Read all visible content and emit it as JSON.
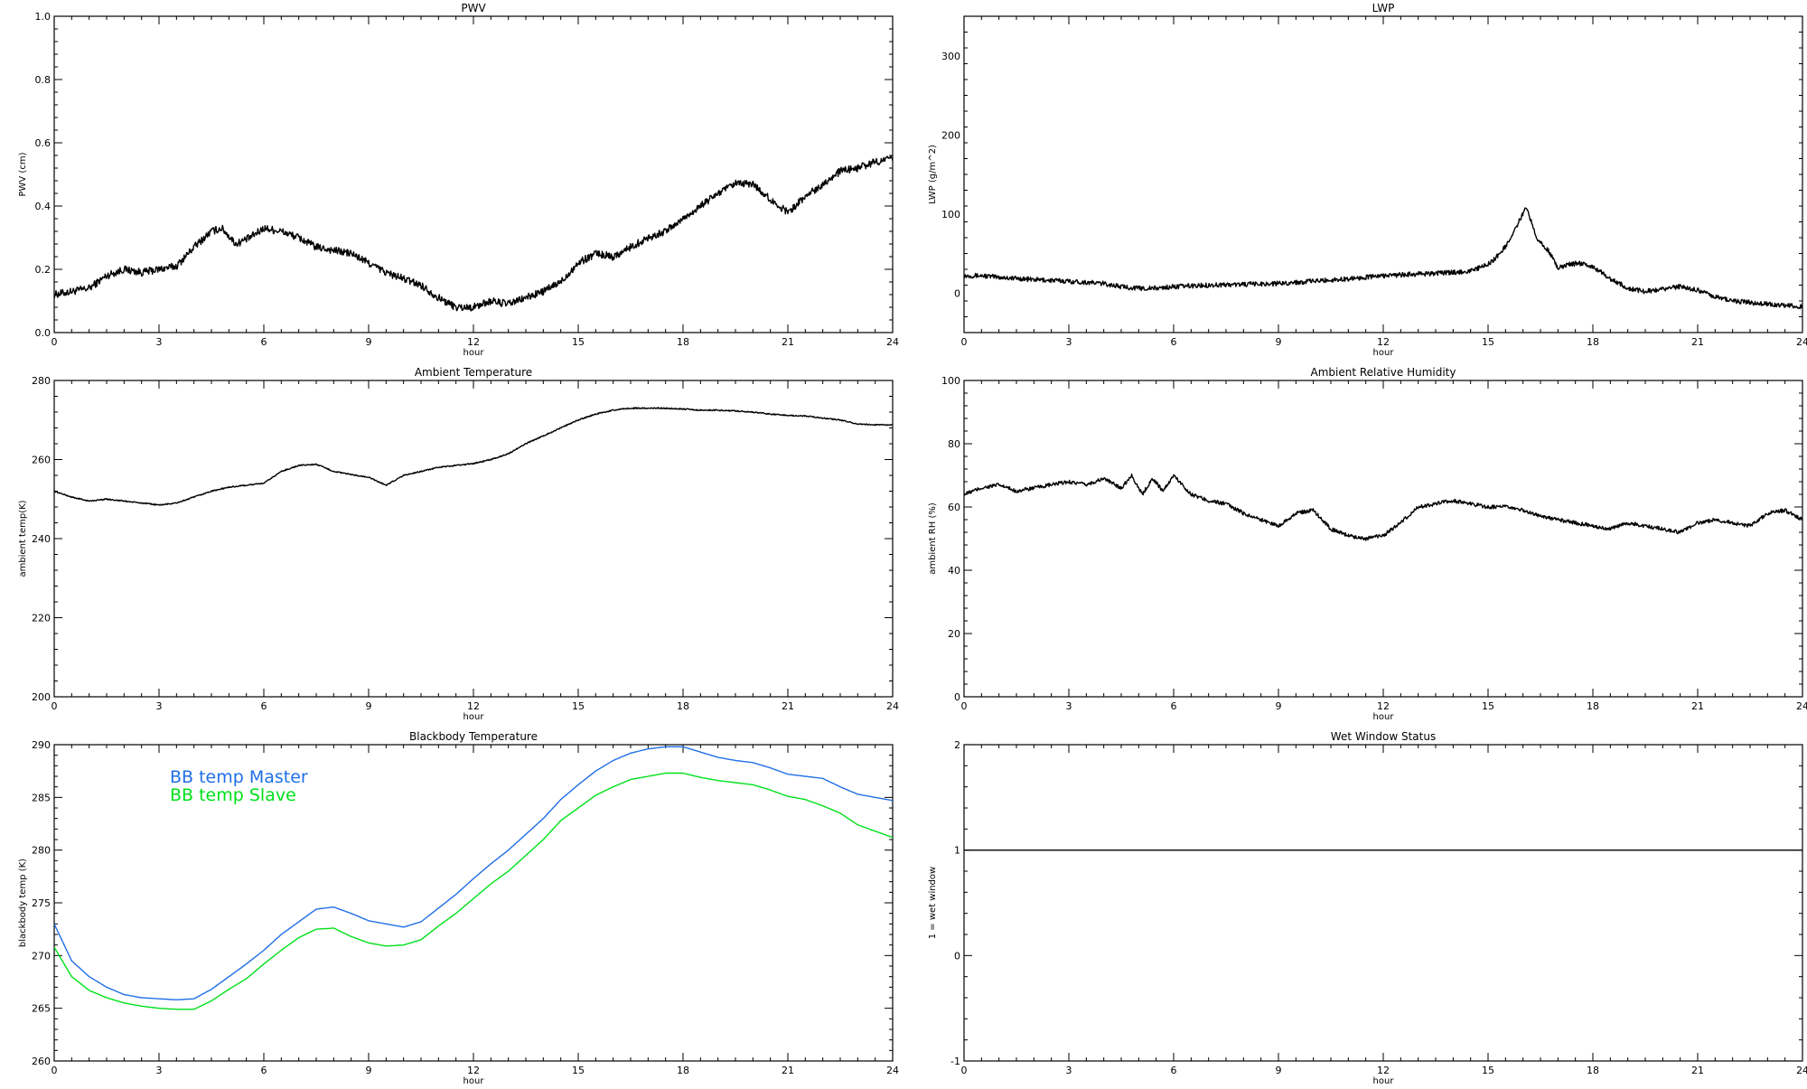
{
  "chart_data": [
    {
      "id": "pwv",
      "type": "line",
      "title": "PWV",
      "xlabel": "hour",
      "ylabel": "PWV (cm)",
      "xlim": [
        0,
        24
      ],
      "ylim": [
        0,
        1.0
      ],
      "xticks": [
        0,
        3,
        6,
        9,
        12,
        15,
        18,
        21,
        24
      ],
      "yticks": [
        0.0,
        0.2,
        0.4,
        0.6,
        0.8,
        1.0
      ],
      "ytick_labels": [
        "0.0",
        "0.2",
        "0.4",
        "0.6",
        "0.8",
        "1.0"
      ],
      "noise": 0.012,
      "series": [
        {
          "color": "#000000",
          "x": [
            0,
            0.5,
            1,
            1.5,
            2,
            2.5,
            3,
            3.5,
            4,
            4.5,
            4.8,
            5.2,
            5.6,
            6,
            6.5,
            7,
            7.5,
            8,
            8.5,
            9,
            9.5,
            10,
            10.5,
            11,
            11.5,
            12,
            12.5,
            13,
            13.5,
            14,
            14.5,
            15,
            15.5,
            16,
            16.5,
            17,
            17.5,
            18,
            18.5,
            19,
            19.5,
            20,
            20.5,
            21,
            21.5,
            22,
            22.5,
            23,
            23.5,
            24
          ],
          "values": [
            0.12,
            0.13,
            0.14,
            0.18,
            0.2,
            0.19,
            0.2,
            0.21,
            0.27,
            0.32,
            0.33,
            0.28,
            0.3,
            0.33,
            0.32,
            0.3,
            0.27,
            0.26,
            0.25,
            0.22,
            0.19,
            0.17,
            0.15,
            0.11,
            0.08,
            0.08,
            0.1,
            0.09,
            0.11,
            0.13,
            0.16,
            0.22,
            0.25,
            0.24,
            0.27,
            0.3,
            0.32,
            0.36,
            0.4,
            0.44,
            0.47,
            0.47,
            0.42,
            0.38,
            0.43,
            0.47,
            0.51,
            0.52,
            0.54,
            0.55
          ]
        }
      ]
    },
    {
      "id": "lwp",
      "type": "line",
      "title": "LWP",
      "xlabel": "hour",
      "ylabel": "LWP (g/m^2)",
      "xlim": [
        0,
        24
      ],
      "ylim": [
        -50,
        350
      ],
      "xticks": [
        0,
        3,
        6,
        9,
        12,
        15,
        18,
        21,
        24
      ],
      "yticks": [
        0,
        100,
        200,
        300
      ],
      "ytick_labels": [
        "0",
        "100",
        "200",
        "300"
      ],
      "noise": 3,
      "series": [
        {
          "color": "#000000",
          "x": [
            0,
            0.5,
            1,
            2,
            3,
            4,
            4.5,
            5,
            5.5,
            6,
            7,
            8,
            9,
            10,
            11,
            12,
            13,
            14,
            14.5,
            15,
            15.3,
            15.6,
            15.9,
            16.1,
            16.4,
            16.7,
            17,
            17.3,
            17.6,
            18,
            18.5,
            19,
            19.5,
            20,
            20.5,
            21,
            21.5,
            22,
            22.5,
            23,
            23.5,
            24
          ],
          "values": [
            22,
            22,
            20,
            17,
            15,
            12,
            8,
            6,
            6,
            8,
            10,
            11,
            12,
            15,
            18,
            22,
            24,
            26,
            28,
            36,
            48,
            65,
            92,
            108,
            70,
            55,
            32,
            36,
            38,
            33,
            18,
            6,
            2,
            5,
            8,
            4,
            -5,
            -10,
            -12,
            -14,
            -16,
            -17
          ]
        }
      ]
    },
    {
      "id": "ambient_temp",
      "type": "line",
      "title": "Ambient Temperature",
      "xlabel": "hour",
      "ylabel": "ambient temp(K)",
      "xlim": [
        0,
        24
      ],
      "ylim": [
        200,
        280
      ],
      "xticks": [
        0,
        3,
        6,
        9,
        12,
        15,
        18,
        21,
        24
      ],
      "yticks": [
        200,
        220,
        240,
        260,
        280
      ],
      "ytick_labels": [
        "200",
        "220",
        "240",
        "260",
        "280"
      ],
      "noise": 0.15,
      "series": [
        {
          "color": "#000000",
          "x": [
            0,
            0.5,
            1,
            1.5,
            2,
            2.5,
            3,
            3.5,
            4,
            4.5,
            5,
            5.5,
            6,
            6.5,
            7,
            7.5,
            8,
            8.5,
            9,
            9.5,
            10,
            10.5,
            11,
            11.5,
            12,
            12.5,
            13,
            13.5,
            14,
            14.5,
            15,
            15.5,
            16,
            16.5,
            17,
            17.5,
            18,
            18.5,
            19,
            19.5,
            20,
            20.5,
            21,
            21.5,
            22,
            22.5,
            23,
            23.5,
            24
          ],
          "values": [
            252,
            250.5,
            249.5,
            250,
            249.5,
            249,
            248.5,
            249,
            250.5,
            252,
            253,
            253.5,
            254,
            257,
            258.5,
            258.8,
            257,
            256.2,
            255.5,
            253.5,
            256,
            257,
            258,
            258.5,
            259,
            260,
            261.5,
            264,
            266,
            268,
            270,
            271.5,
            272.5,
            273,
            273,
            273,
            272.8,
            272.5,
            272.5,
            272.3,
            272,
            271.5,
            271.2,
            271,
            270.5,
            270,
            269,
            268.8,
            268.7
          ]
        }
      ]
    },
    {
      "id": "ambient_rh",
      "type": "line",
      "title": "Ambient Relative Humidity",
      "xlabel": "hour",
      "ylabel": "ambient RH (%)",
      "xlim": [
        0,
        24
      ],
      "ylim": [
        0,
        100
      ],
      "xticks": [
        0,
        3,
        6,
        9,
        12,
        15,
        18,
        21,
        24
      ],
      "yticks": [
        0,
        20,
        40,
        60,
        80,
        100
      ],
      "ytick_labels": [
        "0",
        "20",
        "40",
        "60",
        "80",
        "100"
      ],
      "noise": 0.6,
      "series": [
        {
          "color": "#000000",
          "x": [
            0,
            0.5,
            1,
            1.5,
            2,
            2.5,
            3,
            3.5,
            4,
            4.5,
            4.8,
            5.1,
            5.4,
            5.7,
            6,
            6.5,
            7,
            7.5,
            8,
            8.5,
            9,
            9.5,
            10,
            10.5,
            11,
            11.5,
            12,
            12.5,
            13,
            13.5,
            14,
            14.5,
            15,
            15.5,
            16,
            16.5,
            17,
            17.5,
            18,
            18.5,
            19,
            19.5,
            20,
            20.5,
            21,
            21.5,
            22,
            22.5,
            23,
            23.5,
            24
          ],
          "values": [
            64,
            66,
            67,
            65,
            66,
            67,
            68,
            67,
            69,
            66,
            70,
            64,
            69,
            65,
            70,
            64,
            62,
            61,
            58,
            56,
            54,
            58,
            59,
            53,
            51,
            50,
            51,
            55,
            60,
            61,
            62,
            61,
            60,
            60,
            59,
            57,
            56,
            55,
            54,
            53,
            55,
            54,
            53,
            52,
            55,
            56,
            55,
            54,
            58,
            59,
            56
          ]
        }
      ]
    },
    {
      "id": "bb_temp",
      "type": "line",
      "title": "Blackbody Temperature",
      "xlabel": "hour",
      "ylabel": "blackbody temp (K)",
      "xlim": [
        0,
        24
      ],
      "ylim": [
        260,
        290
      ],
      "xticks": [
        0,
        3,
        6,
        9,
        12,
        15,
        18,
        21,
        24
      ],
      "yticks": [
        260,
        265,
        270,
        275,
        280,
        285,
        290
      ],
      "ytick_labels": [
        "260",
        "265",
        "270",
        "275",
        "280",
        "285",
        "290"
      ],
      "noise": 0,
      "legend": "top-left",
      "series": [
        {
          "name": "BB temp Master",
          "color": "#1f6fe6",
          "x": [
            0,
            0.5,
            1,
            1.5,
            2,
            2.5,
            3,
            3.5,
            4,
            4.5,
            5,
            5.5,
            6,
            6.5,
            7,
            7.5,
            8,
            8.5,
            9,
            9.5,
            10,
            10.5,
            11,
            11.5,
            12,
            12.5,
            13,
            13.5,
            14,
            14.5,
            15,
            15.5,
            16,
            16.5,
            17,
            17.5,
            18,
            18.5,
            19,
            19.5,
            20,
            20.5,
            21,
            21.5,
            22,
            22.5,
            23,
            23.5,
            24
          ],
          "values": [
            273,
            269.5,
            268,
            267,
            266.3,
            266,
            265.9,
            265.8,
            265.9,
            266.8,
            268,
            269.2,
            270.5,
            272,
            273.2,
            274.4,
            274.6,
            274,
            273.3,
            273,
            272.7,
            273.2,
            274.5,
            275.8,
            277.3,
            278.7,
            280,
            281.5,
            283,
            284.8,
            286.2,
            287.5,
            288.5,
            289.2,
            289.6,
            289.8,
            289.8,
            289.3,
            288.8,
            288.5,
            288.3,
            287.8,
            287.2,
            287,
            286.8,
            286,
            285.3,
            285,
            284.7
          ]
        },
        {
          "name": "BB temp Slave",
          "color": "#00e01a",
          "x": [
            0,
            0.5,
            1,
            1.5,
            2,
            2.5,
            3,
            3.5,
            4,
            4.5,
            5,
            5.5,
            6,
            6.5,
            7,
            7.5,
            8,
            8.5,
            9,
            9.5,
            10,
            10.5,
            11,
            11.5,
            12,
            12.5,
            13,
            13.5,
            14,
            14.5,
            15,
            15.5,
            16,
            16.5,
            17,
            17.5,
            18,
            18.5,
            19,
            19.5,
            20,
            20.5,
            21,
            21.5,
            22,
            22.5,
            23,
            23.5,
            24
          ],
          "values": [
            270.8,
            268,
            266.7,
            266,
            265.5,
            265.2,
            265,
            264.9,
            264.9,
            265.7,
            266.8,
            267.8,
            269.2,
            270.5,
            271.7,
            272.5,
            272.6,
            271.8,
            271.2,
            270.9,
            271,
            271.5,
            272.8,
            274,
            275.4,
            276.8,
            278,
            279.5,
            281,
            282.8,
            284,
            285.2,
            286,
            286.7,
            287,
            287.3,
            287.3,
            286.9,
            286.6,
            286.4,
            286.2,
            285.7,
            285.1,
            284.8,
            284.2,
            283.5,
            282.4,
            281.8,
            281.2
          ]
        }
      ]
    },
    {
      "id": "wet_window",
      "type": "line",
      "title": "Wet Window Status",
      "xlabel": "hour",
      "ylabel": "1 = wet window",
      "xlim": [
        0,
        24
      ],
      "ylim": [
        -1,
        2
      ],
      "xticks": [
        0,
        3,
        6,
        9,
        12,
        15,
        18,
        21,
        24
      ],
      "yticks": [
        -1,
        0,
        1,
        2
      ],
      "ytick_labels": [
        "-1",
        "0",
        "1",
        "2"
      ],
      "noise": 0,
      "series": [
        {
          "color": "#000000",
          "x": [
            0,
            24
          ],
          "values": [
            1,
            1
          ]
        }
      ]
    }
  ]
}
